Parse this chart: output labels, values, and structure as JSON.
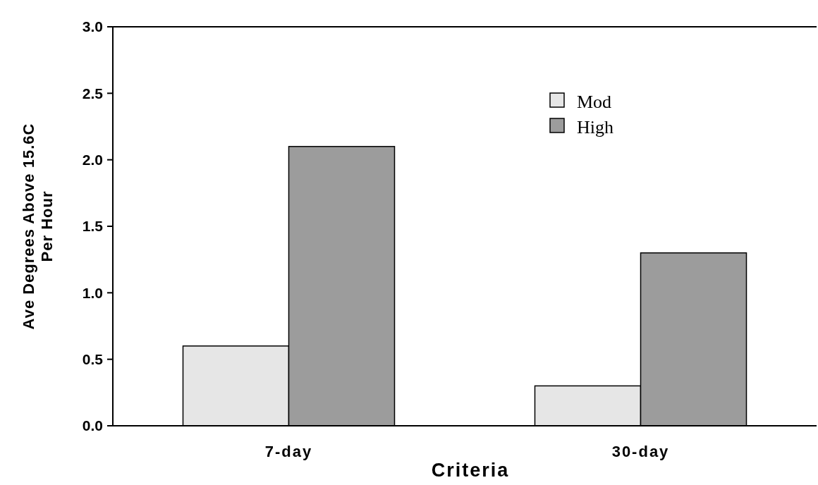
{
  "chart_data": {
    "type": "bar",
    "xlabel": "Criteria",
    "ylabel": "Ave Degrees Above 15.6C\nPer Hour",
    "categories": [
      "7-day",
      "30-day"
    ],
    "series": [
      {
        "name": "Mod",
        "color": "#e6e6e6",
        "values": [
          0.6,
          0.3
        ]
      },
      {
        "name": "High",
        "color": "#9c9c9c",
        "values": [
          2.1,
          1.3
        ]
      }
    ],
    "ylim": [
      0,
      3
    ],
    "yticks": [
      {
        "value": 0,
        "label": "0.0"
      },
      {
        "value": 0.5,
        "label": "0.5"
      },
      {
        "value": 1,
        "label": "1.0"
      },
      {
        "value": 1.5,
        "label": "1.5"
      },
      {
        "value": 2,
        "label": "2.0"
      },
      {
        "value": 2.5,
        "label": "2.5"
      },
      {
        "value": 3,
        "label": "3.0"
      }
    ],
    "legend": "top right",
    "grid": false
  }
}
